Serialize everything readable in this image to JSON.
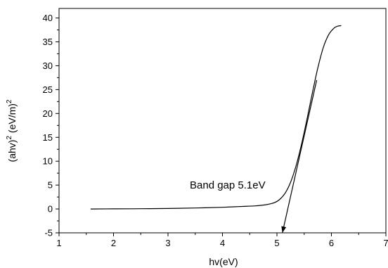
{
  "chart_data": {
    "type": "line",
    "title": "",
    "xlabel": "hv(eV)",
    "ylabel": "(ahv)² (eV/m)²",
    "ylabel_parts": {
      "base": "(ahv)",
      "sup1": "2",
      "mid": " (eV/m)",
      "sup2": "2"
    },
    "xlim": [
      1,
      7
    ],
    "ylim": [
      -5,
      42
    ],
    "x_ticks": [
      1,
      2,
      3,
      4,
      5,
      6,
      7
    ],
    "x_tick_labels": [
      "1",
      "2",
      "3",
      "4",
      "5",
      "6",
      "7"
    ],
    "y_ticks": [
      -5,
      0,
      5,
      10,
      15,
      20,
      25,
      30,
      35,
      40
    ],
    "y_tick_labels": [
      "-5",
      "0",
      "5",
      "10",
      "15",
      "20",
      "25",
      "30",
      "35",
      "40"
    ],
    "grid": false,
    "legend": "none",
    "line_color": "#000000",
    "series": [
      {
        "x": [
          1.58,
          2.0,
          2.5,
          3.0,
          3.5,
          4.0,
          4.3,
          4.6,
          4.8,
          4.95,
          5.05,
          5.15,
          5.25,
          5.35,
          5.45,
          5.55,
          5.65,
          5.75,
          5.85,
          5.95,
          6.05,
          6.12,
          6.18
        ],
        "y": [
          0.0,
          0.02,
          0.05,
          0.1,
          0.2,
          0.35,
          0.5,
          0.65,
          0.9,
          1.3,
          2.0,
          3.3,
          5.6,
          9.0,
          13.5,
          18.7,
          24.3,
          29.5,
          33.8,
          36.5,
          37.9,
          38.3,
          38.4
        ]
      }
    ],
    "tangent_line": {
      "x": [
        5.1,
        5.73
      ],
      "y": [
        -5,
        27
      ]
    },
    "annotations": [
      {
        "text": "Band gap 5.1eV",
        "x": 3.4,
        "y": 4.3
      }
    ]
  }
}
